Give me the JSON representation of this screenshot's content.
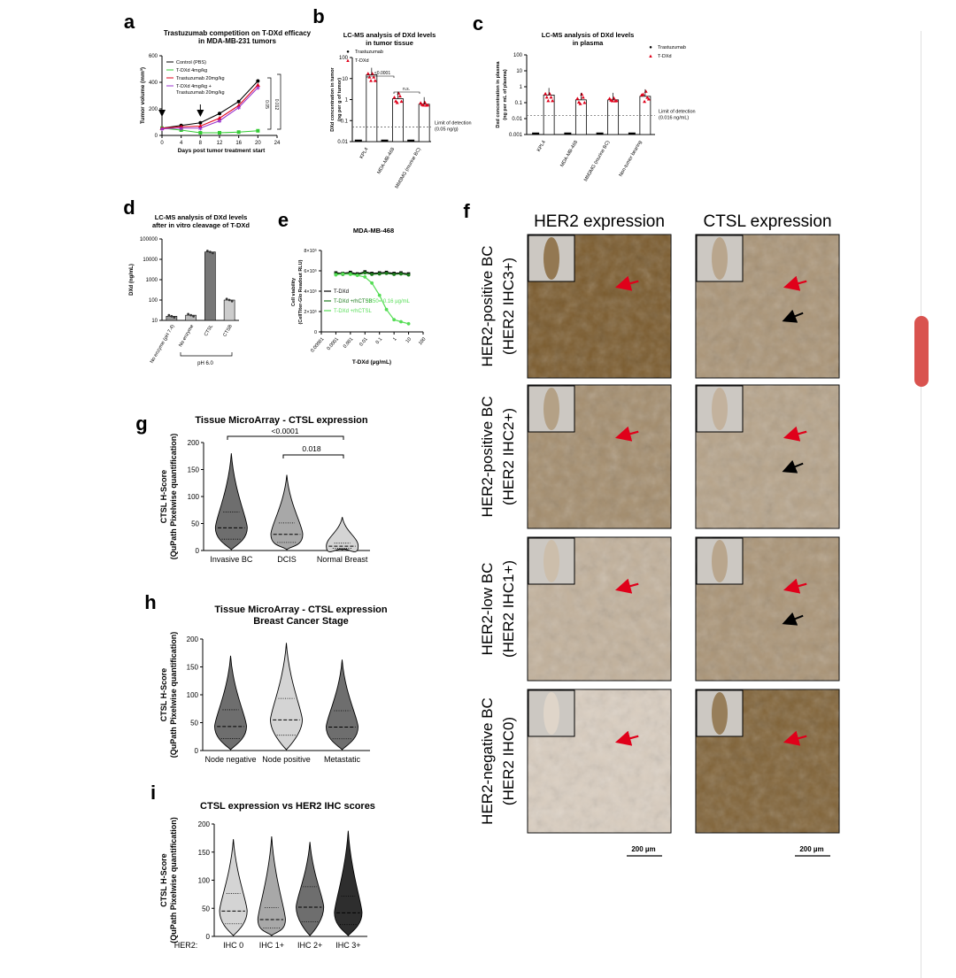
{
  "panel_letters": [
    "a",
    "b",
    "c",
    "d",
    "e",
    "f",
    "g",
    "h",
    "i"
  ],
  "colors": {
    "black": "#000000",
    "green": "#33cc33",
    "red": "#e0001a",
    "magenta": "#9933cc",
    "darkgreen": "#1b7a1b",
    "lightgreen": "#55dd55",
    "violin_dark": "#6e6e6e",
    "violin_mid": "#a8a8a8",
    "violin_light": "#d4d4d4"
  },
  "chart_data": [
    {
      "id": "a",
      "type": "line",
      "title": "Trastuzumab competition on T-DXd efficacy in MDA-MB-231 tumors",
      "title_lines": [
        "Trastuzumab competition on T-DXd efficacy",
        "in MDA-MB-231 tumors"
      ],
      "xlabel": "Days post tumor treatment start",
      "ylabel": "Tumor volume (mm³)",
      "xlim": [
        0,
        24
      ],
      "ylim": [
        0,
        600
      ],
      "xticks": [
        "0",
        "4",
        "8",
        "12",
        "16",
        "20",
        "24"
      ],
      "yticks": [
        "0",
        "200",
        "400",
        "600"
      ],
      "x": [
        0,
        4,
        8,
        12,
        16,
        20
      ],
      "series": [
        {
          "name": "Control (PBS)",
          "color": "#000000",
          "marker": "circle",
          "values": [
            55,
            75,
            95,
            165,
            255,
            410
          ]
        },
        {
          "name": "T-DXd 4mg/kg",
          "color": "#33cc33",
          "marker": "square",
          "values": [
            55,
            40,
            20,
            20,
            25,
            35
          ]
        },
        {
          "name": "Trastuzumab 20mg/kg",
          "color": "#e0001a",
          "marker": "triangle",
          "values": [
            55,
            65,
            70,
            130,
            225,
            380
          ]
        },
        {
          "name": "T-DXd 4mg/kg + Trastuzumab 20mg/kg",
          "color": "#9933cc",
          "marker": "star",
          "values": [
            50,
            55,
            55,
            110,
            210,
            360
          ]
        }
      ],
      "legend_lines": [
        [
          "Control (PBS)"
        ],
        [
          "T-DXd 4mg/kg"
        ],
        [
          "Trastuzumab 20mg/kg"
        ],
        [
          "T-DXd 4mg/kg +",
          "Trastuzumab 20mg/kg"
        ]
      ],
      "annotations": [
        "0.05",
        "0.012"
      ]
    },
    {
      "id": "b",
      "type": "bar",
      "title": "LC-MS analysis of DXd levels in tumor tissue",
      "title_lines": [
        "LC-MS analysis of DXd levels",
        "in tumor tissue"
      ],
      "ylabel_lines": [
        "DXd concentration in tumor",
        "(ng per g of tumor)"
      ],
      "categories": [
        "KPL4",
        "MDA-MB-468",
        "MM3MG (murine BC)"
      ],
      "yscale": "log",
      "ylim": [
        0.01,
        100
      ],
      "yticks": [
        "100",
        "10",
        "1",
        "0.1",
        "0.01"
      ],
      "series": [
        {
          "name": "Trastuzumab",
          "color": "#000000",
          "values": [
            0.01,
            0.01,
            0.01
          ]
        },
        {
          "name": "T-DXd",
          "color": "#e0001a",
          "values": [
            15,
            1.1,
            0.6
          ]
        }
      ],
      "annotations": [
        "<0.0001",
        "n.s."
      ],
      "lod_lines": [
        "Limit of detection",
        "(0.05 ng/g)"
      ],
      "lod": 0.05
    },
    {
      "id": "c",
      "type": "bar",
      "title": "LC-MS analysis of DXd levels in plasma",
      "title_lines": [
        "LC-MS analysis of DXd levels",
        "in plasma"
      ],
      "ylabel_lines": [
        "Dxd concentration in plasma",
        "(ng per mL of plasma)"
      ],
      "categories": [
        "KPL4",
        "MDA-MB-468",
        "MM3MG (murine BC)",
        "Non-tumor bearing"
      ],
      "yscale": "log",
      "ylim": [
        0.001,
        100
      ],
      "yticks": [
        "100",
        "10",
        "1",
        "0.1",
        "0.01",
        "0.001"
      ],
      "series": [
        {
          "name": "Trastuzumab",
          "color": "#000000",
          "values": [
            0.001,
            0.001,
            0.001,
            0.001
          ]
        },
        {
          "name": "T-DXd",
          "color": "#e0001a",
          "values": [
            0.3,
            0.15,
            0.15,
            0.25
          ]
        }
      ],
      "lod_lines": [
        "Limit of detection",
        "(0.016 ng/mL)"
      ],
      "lod": 0.016
    },
    {
      "id": "d",
      "type": "bar",
      "title": "LC-MS analysis of DXd levels after in vitro cleavage of T-DXd",
      "title_lines": [
        "LC-MS analysis of DXd levels",
        "after in vitro cleavage of T-DXd"
      ],
      "ylabel": "DXd (ng/mL)",
      "categories": [
        "No enzyme (pH 7.4)",
        "No enzyme",
        "CTSL",
        "CTSB"
      ],
      "yscale": "log",
      "ylim": [
        10,
        100000
      ],
      "yticks": [
        "100000",
        "10000",
        "1000",
        "100",
        "10"
      ],
      "values": [
        16,
        18,
        23000,
        100
      ],
      "bar_colors": [
        "#999999",
        "#bbbbbb",
        "#777777",
        "#cccccc"
      ],
      "group_label": "pH 6.0"
    },
    {
      "id": "e",
      "type": "line",
      "title": "MDA-MB-468",
      "ylabel_lines": [
        "Cell viability",
        "(CellTiter-Glo Readout RLU)"
      ],
      "xlabel": "T-DXd (µg/mL)",
      "xscale": "log",
      "xlim": [
        1e-05,
        100
      ],
      "xticks": [
        "0.00001",
        "0.0001",
        "0.001",
        "0.01",
        "0.1",
        "1",
        "10",
        "100"
      ],
      "yticks": [
        "0",
        "2×10⁵",
        "4×10⁵",
        "6×10⁵",
        "8×10⁵"
      ],
      "ylim": [
        0,
        800000
      ],
      "x": [
        0.0001,
        0.0003,
        0.001,
        0.003,
        0.01,
        0.03,
        0.1,
        0.3,
        1,
        3,
        10
      ],
      "series": [
        {
          "name": "T-DXd",
          "color": "#000000",
          "values": [
            580000,
            575000,
            585000,
            570000,
            590000,
            575000,
            580000,
            585000,
            575000,
            580000,
            570000
          ]
        },
        {
          "name": "T-DXd +rhCTSB",
          "color": "#1b7a1b",
          "values": [
            570000,
            565000,
            575000,
            560000,
            580000,
            565000,
            570000,
            575000,
            565000,
            570000,
            560000
          ]
        },
        {
          "name": "T-DXd +rhCTSL",
          "color": "#55dd55",
          "values": [
            560000,
            570000,
            565000,
            555000,
            540000,
            480000,
            360000,
            220000,
            120000,
            100000,
            80000
          ]
        }
      ],
      "annotation": "IC50= 0.16 µg/mL"
    },
    {
      "id": "g",
      "type": "violin",
      "title": "Tissue MicroArray - CTSL expression",
      "ylabel_lines": [
        "CTSL H-Score",
        "(QuPath Pixelwise quantification)"
      ],
      "categories": [
        "Invasive BC",
        "DCIS",
        "Normal Breast"
      ],
      "ylim": [
        0,
        200
      ],
      "yticks": [
        "0",
        "50",
        "100",
        "150",
        "200"
      ],
      "medians": [
        42,
        30,
        8
      ],
      "maxima": [
        180,
        140,
        62
      ],
      "annotations": [
        "<0.0001",
        "0.018"
      ]
    },
    {
      "id": "h",
      "type": "violin",
      "title": "Tissue MicroArray - CTSL expression Breast Cancer Stage",
      "title_lines": [
        "Tissue MicroArray - CTSL expression",
        "Breast Cancer Stage"
      ],
      "ylabel_lines": [
        "CTSL H-Score",
        "(QuPath Pixelwise quantification)"
      ],
      "categories": [
        "Node negative",
        "Node positive",
        "Metastatic"
      ],
      "ylim": [
        0,
        200
      ],
      "yticks": [
        "0",
        "50",
        "100",
        "150",
        "200"
      ],
      "medians": [
        43,
        55,
        42
      ],
      "maxima": [
        170,
        193,
        163
      ]
    },
    {
      "id": "i",
      "type": "violin",
      "title": "CTSL expression vs HER2 IHC scores",
      "ylabel_lines": [
        "CTSL H-Score",
        "(QuPath Pixelwise quantification)"
      ],
      "categories": [
        "IHC 0",
        "IHC 1+",
        "IHC 2+",
        "IHC 3+"
      ],
      "category_prefix": "HER2:",
      "ylim": [
        0,
        200
      ],
      "yticks": [
        "0",
        "50",
        "100",
        "150",
        "200"
      ],
      "medians": [
        45,
        30,
        52,
        42
      ],
      "maxima": [
        173,
        178,
        168,
        188
      ]
    }
  ],
  "panel_f": {
    "col_headers": [
      "HER2 expression",
      "CTSL expression"
    ],
    "row_labels": [
      [
        "HER2-positive BC",
        "(HER2 IHC3+)"
      ],
      [
        "HER2-positive BC",
        "(HER2 IHC2+)"
      ],
      [
        "HER2-low BC",
        "(HER2 IHC1+)"
      ],
      [
        "HER2-negative BC",
        "(HER2 IHC0)"
      ]
    ],
    "scalebar": "200 µm",
    "stain_levels": [
      [
        0.95,
        0.55
      ],
      [
        0.6,
        0.45
      ],
      [
        0.35,
        0.55
      ],
      [
        0.15,
        0.9
      ]
    ]
  }
}
